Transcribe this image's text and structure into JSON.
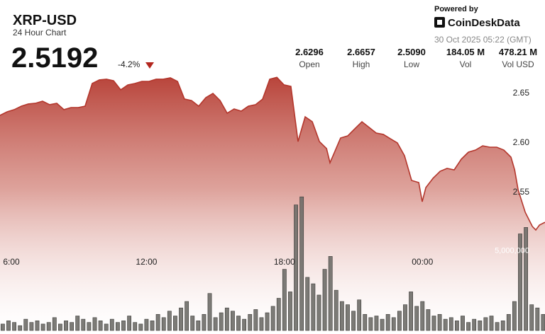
{
  "chart_data": {
    "type": "area",
    "title": "XRP-USD",
    "subtitle": "24 Hour Chart",
    "last_price": "2.5192",
    "change": "-4.2%",
    "powered_by": "Powered by",
    "brand": "CoinDeskData",
    "timestamp": "30 Oct 2025 05:22 (GMT)",
    "stats": [
      {
        "value": "2.6296",
        "label": "Open"
      },
      {
        "value": "2.6657",
        "label": "High"
      },
      {
        "value": "2.5090",
        "label": "Low"
      },
      {
        "value": "184.05 M",
        "label": "Vol"
      },
      {
        "value": "478.21 M",
        "label": "Vol USD"
      }
    ],
    "xlim": [
      5.63,
      29.33
    ],
    "xticks": [
      {
        "value": 6,
        "label": "6:00"
      },
      {
        "value": 12,
        "label": "12:00"
      },
      {
        "value": 18,
        "label": "18:00"
      },
      {
        "value": 24,
        "label": "00:00"
      }
    ],
    "ylim": [
      2.41,
      2.67
    ],
    "yticks": [
      2.55,
      {
        "value": 2.6,
        "label": "2.60"
      },
      2.65
    ],
    "y2lim": [
      0,
      16000000
    ],
    "y2ticks": [
      {
        "value": 5000000,
        "label": "5,000,000"
      }
    ],
    "grid": false,
    "series": [
      {
        "type": "area",
        "color": "#b3362c",
        "x": [
          5.63,
          5.94,
          6.25,
          6.56,
          6.86,
          7.17,
          7.48,
          7.79,
          8.1,
          8.41,
          8.72,
          9.03,
          9.33,
          9.64,
          9.95,
          10.26,
          10.57,
          10.88,
          11.19,
          11.49,
          11.8,
          12.11,
          12.42,
          12.73,
          13.04,
          13.35,
          13.65,
          13.96,
          14.27,
          14.58,
          14.89,
          15.2,
          15.51,
          15.81,
          16.12,
          16.43,
          16.74,
          17.05,
          17.36,
          17.67,
          17.98,
          18.28,
          18.59,
          18.9,
          19.21,
          19.52,
          19.83,
          19.98,
          20.14,
          20.44,
          20.75,
          21.06,
          21.37,
          21.68,
          21.99,
          22.3,
          22.6,
          22.91,
          23.22,
          23.53,
          23.84,
          23.99,
          24.15,
          24.46,
          24.77,
          25.07,
          25.38,
          25.69,
          26.0,
          26.31,
          26.62,
          26.93,
          27.23,
          27.54,
          27.85,
          28.01,
          28.16,
          28.47,
          28.78,
          28.93,
          29.09,
          29.33
        ],
        "values": [
          2.6271,
          2.6307,
          2.6329,
          2.6364,
          2.6386,
          2.6393,
          2.6414,
          2.6379,
          2.6393,
          2.6329,
          2.635,
          2.635,
          2.6364,
          2.6593,
          2.6629,
          2.6636,
          2.6621,
          2.6529,
          2.6579,
          2.6593,
          2.6614,
          2.6614,
          2.6636,
          2.6636,
          2.665,
          2.6614,
          2.6436,
          2.6421,
          2.6364,
          2.645,
          2.6493,
          2.6421,
          2.6293,
          2.6336,
          2.6314,
          2.6364,
          2.6379,
          2.6436,
          2.6636,
          2.6655,
          2.6579,
          2.6564,
          2.6007,
          2.6257,
          2.6207,
          2.6007,
          2.5936,
          2.5793,
          2.5879,
          2.6043,
          2.6064,
          2.6136,
          2.6207,
          2.615,
          2.6093,
          2.6079,
          2.6036,
          2.5993,
          2.5864,
          2.5614,
          2.5593,
          2.54,
          2.5543,
          2.5636,
          2.5707,
          2.5736,
          2.5721,
          2.5829,
          2.59,
          2.5921,
          2.5964,
          2.595,
          2.595,
          2.5921,
          2.585,
          2.5721,
          2.5521,
          2.5293,
          2.515,
          2.5114,
          2.5164,
          2.5192
        ]
      },
      {
        "type": "bar",
        "axis": "y2",
        "color": "#6e6d68",
        "x": [
          5.75,
          6,
          6.25,
          6.5,
          6.75,
          7,
          7.25,
          7.5,
          7.75,
          8,
          8.25,
          8.5,
          8.75,
          9,
          9.25,
          9.5,
          9.75,
          10,
          10.25,
          10.5,
          10.75,
          11,
          11.25,
          11.5,
          11.75,
          12,
          12.25,
          12.5,
          12.75,
          13,
          13.25,
          13.5,
          13.75,
          14,
          14.25,
          14.5,
          14.75,
          15,
          15.25,
          15.5,
          15.75,
          16,
          16.25,
          16.5,
          16.75,
          17,
          17.25,
          17.5,
          17.75,
          18,
          18.25,
          18.5,
          18.75,
          19,
          19.25,
          19.5,
          19.75,
          20,
          20.25,
          20.5,
          20.75,
          21,
          21.25,
          21.5,
          21.75,
          22,
          22.25,
          22.5,
          22.75,
          23,
          23.25,
          23.5,
          23.75,
          24,
          24.25,
          24.5,
          24.75,
          25,
          25.25,
          25.5,
          25.75,
          26,
          26.25,
          26.5,
          26.75,
          27,
          27.25,
          27.5,
          27.75,
          28,
          28.25,
          28.5,
          28.75,
          29,
          29.25
        ],
        "values": [
          400000,
          600000,
          500000,
          300000,
          700000,
          500000,
          600000,
          400000,
          500000,
          800000,
          400000,
          600000,
          500000,
          900000,
          700000,
          500000,
          800000,
          600000,
          400000,
          700000,
          500000,
          600000,
          900000,
          500000,
          400000,
          700000,
          600000,
          1000000,
          800000,
          1200000,
          900000,
          1400000,
          1800000,
          900000,
          600000,
          1000000,
          2300000,
          800000,
          1100000,
          1400000,
          1200000,
          900000,
          700000,
          1000000,
          1300000,
          800000,
          1100000,
          1500000,
          2000000,
          3800000,
          2400000,
          7800000,
          8300000,
          3300000,
          2900000,
          2200000,
          3800000,
          4600000,
          2500000,
          1800000,
          1600000,
          1200000,
          1900000,
          1000000,
          800000,
          900000,
          700000,
          1000000,
          800000,
          1200000,
          1600000,
          2400000,
          1500000,
          1800000,
          1300000,
          900000,
          1000000,
          700000,
          800000,
          600000,
          900000,
          500000,
          700000,
          600000,
          800000,
          900000,
          500000,
          600000,
          1000000,
          1800000,
          6000000,
          6400000,
          1600000,
          1400000,
          1000000
        ]
      }
    ]
  }
}
